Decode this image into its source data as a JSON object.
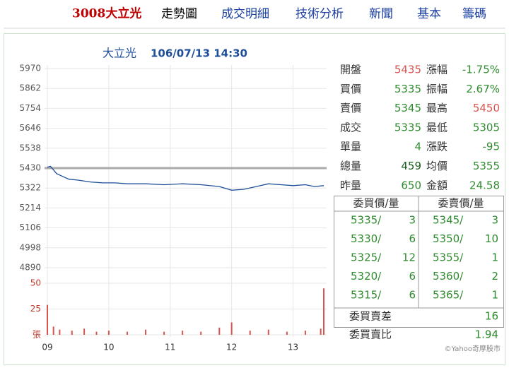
{
  "header": {
    "title": "3008大立光",
    "tabs": [
      "走勢圖",
      "成交明細",
      "技術分析",
      "新聞",
      "基本",
      "籌碼"
    ]
  },
  "chart_data": [
    {
      "type": "line",
      "title": "大立光",
      "subtitle": "106/07/13 14:30",
      "color": "#1f4e99",
      "grid": true,
      "x": [
        9.0,
        9.05,
        9.1,
        9.15,
        9.25,
        9.35,
        9.5,
        9.7,
        9.9,
        10.1,
        10.3,
        10.6,
        10.9,
        11.2,
        11.5,
        11.8,
        12.0,
        12.2,
        12.4,
        12.6,
        12.8,
        13.0,
        13.2,
        13.35,
        13.5
      ],
      "values": [
        5435,
        5440,
        5420,
        5400,
        5385,
        5370,
        5365,
        5355,
        5350,
        5350,
        5345,
        5345,
        5340,
        5345,
        5340,
        5330,
        5310,
        5315,
        5330,
        5345,
        5340,
        5335,
        5340,
        5330,
        5335
      ],
      "reference": 5430,
      "reference_color": "#aaaaaa",
      "xlim": [
        9,
        13.5
      ],
      "xticks": [
        {
          "value": 9,
          "label": "09"
        },
        10,
        11,
        12,
        13
      ],
      "ylim": [
        4890,
        5970
      ],
      "yticks": [
        5970,
        5862,
        5754,
        5646,
        5538,
        5430,
        5322,
        5214,
        5106,
        4998,
        4890
      ]
    },
    {
      "type": "bar",
      "color": "#d9534f",
      "grid": true,
      "x": [
        9.0,
        9.1,
        9.2,
        9.4,
        9.6,
        9.8,
        10.0,
        10.3,
        10.6,
        10.9,
        11.2,
        11.5,
        11.8,
        12.0,
        12.3,
        12.6,
        12.9,
        13.2,
        13.45,
        13.5
      ],
      "values": [
        29,
        8,
        5,
        4,
        6,
        3,
        4,
        3,
        5,
        3,
        4,
        3,
        7,
        12,
        4,
        5,
        3,
        4,
        6,
        45
      ],
      "xlim": [
        9,
        13.5
      ],
      "ylim": [
        0,
        50
      ],
      "yticks": [
        50,
        25,
        {
          "value": 0,
          "label": "張"
        }
      ]
    }
  ],
  "quote": {
    "rows": [
      {
        "label1": "開盤",
        "value1": "5435",
        "color1": "#d9534f",
        "label2": "漲幅",
        "value2": "-1.75%",
        "color2": "#2e8b2e"
      },
      {
        "label1": "買價",
        "value1": "5335",
        "color1": "#2e8b2e",
        "label2": "振幅",
        "value2": "2.67%",
        "color2": "#2e8b2e"
      },
      {
        "label1": "賣價",
        "value1": "5345",
        "color1": "#2e8b2e",
        "label2": "最高",
        "value2": "5450",
        "color2": "#d9534f"
      },
      {
        "label1": "成交",
        "value1": "5335",
        "color1": "#2e8b2e",
        "label2": "最低",
        "value2": "5305",
        "color2": "#2e8b2e"
      },
      {
        "label1": "單量",
        "value1": "4",
        "color1": "#2e8b2e",
        "label2": "漲跌",
        "value2": "-95",
        "color2": "#2e8b2e"
      },
      {
        "label1": "總量",
        "value1": "459",
        "color1": "#1a5c1a",
        "label2": "均價",
        "value2": "5355",
        "color2": "#2e8b2e"
      },
      {
        "label1": "昨量",
        "value1": "650",
        "color1": "#2e8b2e",
        "label2": "金額",
        "value2": "24.58",
        "color2": "#2e8b2e"
      }
    ]
  },
  "orderbook": {
    "bid_header": "委買價/量",
    "ask_header": "委賣價/量",
    "bids": [
      [
        "5335/",
        3
      ],
      [
        "5330/",
        6
      ],
      [
        "5325/",
        12
      ],
      [
        "5320/",
        6
      ],
      [
        "5315/",
        6
      ]
    ],
    "asks": [
      [
        "5345/",
        3
      ],
      [
        "5350/",
        10
      ],
      [
        "5355/",
        1
      ],
      [
        "5360/",
        2
      ],
      [
        "5365/",
        1
      ]
    ],
    "diff_label": "委買賣差",
    "diff": 16,
    "ratio_label": "委買賣比",
    "ratio": 1.94
  },
  "footer": "©Yahoo奇摩股市"
}
